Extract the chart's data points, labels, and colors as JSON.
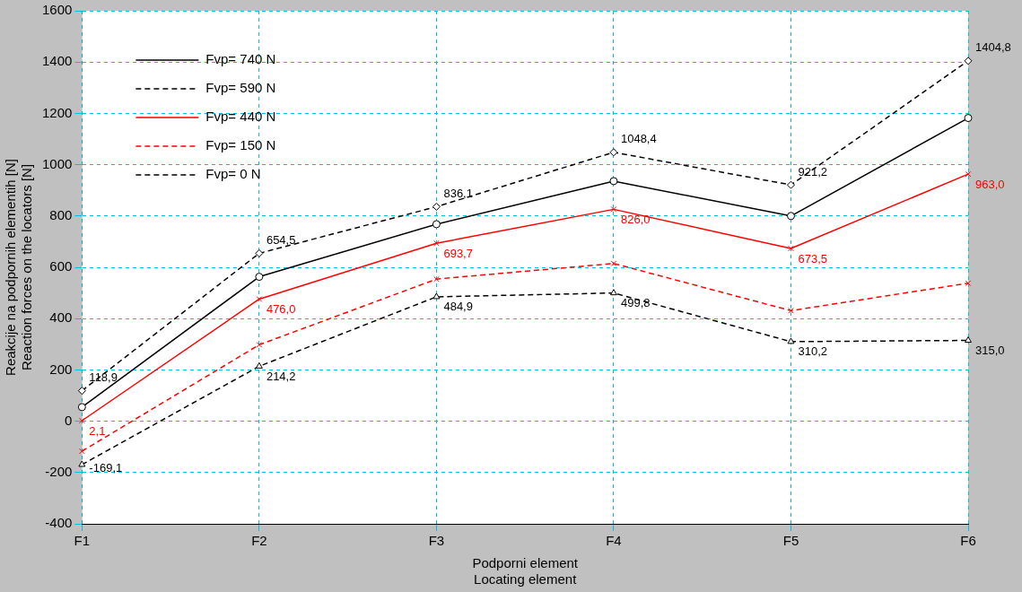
{
  "chart_data": {
    "type": "line",
    "xlabel": "Podporni element\nLocating element",
    "ylabel": "Reakcije na podpornih elementih [N]\nReaction forces on the locators [N]",
    "categories": [
      "F1",
      "F2",
      "F3",
      "F4",
      "F5",
      "F6"
    ],
    "ylim": [
      -400,
      1600
    ],
    "yticks": [
      -400,
      -200,
      0,
      200,
      400,
      600,
      800,
      1000,
      1200,
      1400,
      1600
    ],
    "grid": true,
    "legend": "top left",
    "series": [
      {
        "name": "Fvp= 740 N",
        "color": "#000000",
        "marker": "circle",
        "line_style": "solid",
        "values": [
          55,
          563,
          768,
          936,
          800,
          1182
        ]
      },
      {
        "name": "Fvp= 590 N",
        "color": "#000000",
        "marker": "diamond",
        "line_style": "dashed",
        "values": [
          118.9,
          654.5,
          836.1,
          1048.4,
          921.2,
          1404.8
        ],
        "value_labels": [
          "118,9",
          "654,5",
          "836,1",
          "1048,4",
          "921,2",
          "1404,8"
        ]
      },
      {
        "name": "Fvp= 440 N",
        "color": "#ff0000",
        "marker": "cross",
        "line_style": "solid",
        "values": [
          2.1,
          476.0,
          693.7,
          826.0,
          673.5,
          963.0
        ],
        "value_labels": [
          "2,1",
          "476,0",
          "693,7",
          "826,0",
          "673,5",
          "963,0"
        ]
      },
      {
        "name": "Fvp= 150 N",
        "color": "#ff0000",
        "marker": "cross",
        "line_style": "dashed",
        "values": [
          -117,
          298,
          554,
          615,
          431,
          538
        ]
      },
      {
        "name": "Fvp= 0 N",
        "color": "#000000",
        "marker": "triangle",
        "line_style": "dashed",
        "values": [
          -169.1,
          214.2,
          484.9,
          499.8,
          310.2,
          315.0
        ],
        "value_labels": [
          "-169,1",
          "214,2",
          "484,9",
          "499,8",
          "310,2",
          "315,0"
        ]
      }
    ]
  }
}
